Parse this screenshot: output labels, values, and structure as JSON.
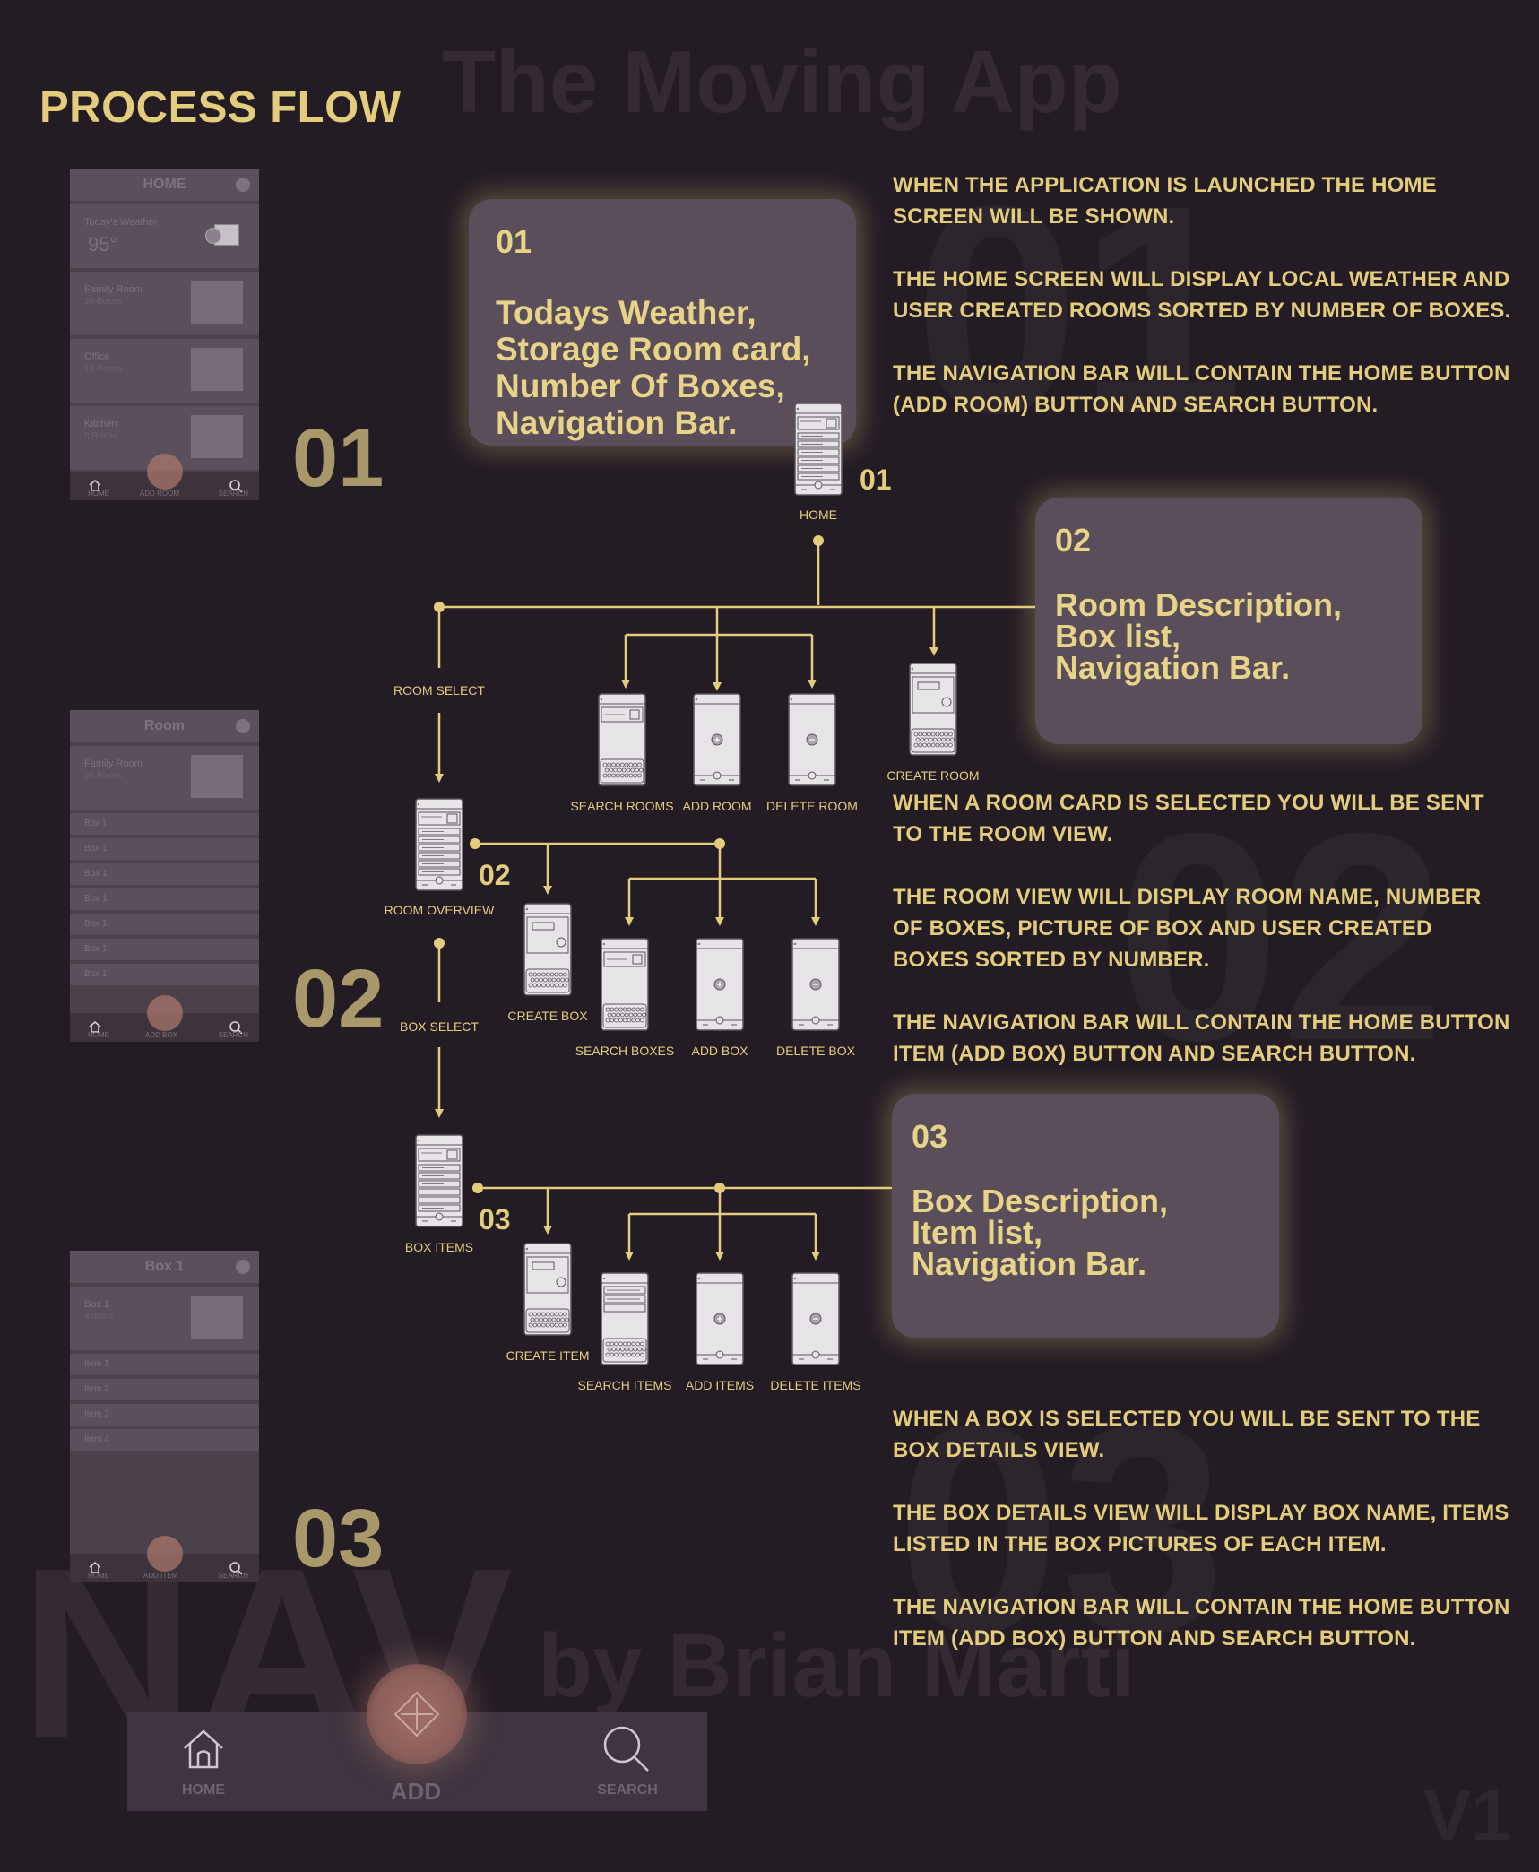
{
  "watermarks": {
    "app_title": "The Moving App",
    "byline": "by Brian Marti",
    "nav": "NAV",
    "version": "V1",
    "bg_01": "01",
    "bg_02": "02",
    "bg_03": "03"
  },
  "heading": "PROCESS FLOW",
  "sections": [
    {
      "number": "01",
      "phone": {
        "title": "HOME",
        "weather_label": "Today's Weather",
        "weather_value": "95°",
        "cards": [
          {
            "title": "Family Room",
            "sub": "20 Boxes"
          },
          {
            "title": "Office",
            "sub": "15 Boxes"
          },
          {
            "title": "Kitchen",
            "sub": "8 Boxes"
          }
        ],
        "nav": {
          "left": "HOME",
          "center": "ADD ROOM",
          "right": "SEARCH"
        }
      },
      "card": {
        "number": "01",
        "text": [
          "Todays Weather,",
          "Storage Room card,",
          "Number Of Boxes,",
          "Navigation Bar."
        ]
      },
      "paragraphs": [
        "WHEN THE APPLICATION IS LAUNCHED THE HOME SCREEN WILL BE SHOWN.",
        "THE HOME SCREEN WILL DISPLAY LOCAL WEATHER AND USER CREATED ROOMS SORTED BY NUMBER OF BOXES.",
        "THE NAVIGATION BAR WILL CONTAIN THE HOME BUTTON (ADD ROOM) BUTTON AND SEARCH BUTTON."
      ]
    },
    {
      "number": "02",
      "phone": {
        "title": "Room",
        "card": {
          "title": "Family Room",
          "sub": "20 Boxes"
        },
        "rows": [
          "Box 1",
          "Box 1",
          "Box 1",
          "Box 1",
          "Box 1",
          "Box 1",
          "Box 1"
        ],
        "nav": {
          "left": "HOME",
          "center": "ADD BOX",
          "right": "SEARCH"
        }
      },
      "card": {
        "number": "02",
        "text": [
          "Room Description,",
          "Box list,",
          "Navigation Bar."
        ]
      },
      "paragraphs": [
        "WHEN A ROOM CARD IS SELECTED YOU WILL BE SENT TO THE ROOM VIEW.",
        "THE ROOM VIEW WILL DISPLAY ROOM NAME, NUMBER OF BOXES, PICTURE OF BOX AND USER CREATED BOXES SORTED BY NUMBER.",
        "THE NAVIGATION BAR WILL CONTAIN THE HOME BUTTON ITEM (ADD BOX) BUTTON AND SEARCH BUTTON."
      ]
    },
    {
      "number": "03",
      "phone": {
        "title": "Box 1",
        "card": {
          "title": "Box 1",
          "sub": "4 Items"
        },
        "rows": [
          "Item 1",
          "Item 2",
          "Item 3",
          "Item 4"
        ],
        "nav": {
          "left": "HOME",
          "center": "ADD ITEM",
          "right": "SEARCH"
        }
      },
      "card": {
        "number": "03",
        "text": [
          "Box Description,",
          "Item list,",
          "Navigation Bar."
        ]
      },
      "paragraphs": [
        "WHEN A BOX IS SELECTED YOU WILL BE SENT TO THE BOX DETAILS VIEW.",
        "THE BOX DETAILS VIEW WILL DISPLAY BOX NAME, ITEMS LISTED IN THE BOX PICTURES OF EACH ITEM.",
        "THE NAVIGATION BAR WILL CONTAIN THE HOME BUTTON ITEM (ADD BOX) BUTTON AND SEARCH BUTTON."
      ]
    }
  ],
  "flow": {
    "home": {
      "label": "HOME",
      "number": "01"
    },
    "room_select": "ROOM SELECT",
    "room_overview": {
      "label": "ROOM OVERVIEW",
      "number": "02"
    },
    "box_select": "BOX SELECT",
    "box_items": {
      "label": "BOX ITEMS",
      "number": "03"
    },
    "level1": [
      "SEARCH ROOMS",
      "ADD ROOM",
      "DELETE ROOM",
      "CREATE ROOM"
    ],
    "level2": [
      "CREATE BOX",
      "SEARCH BOXES",
      "ADD BOX",
      "DELETE BOX"
    ],
    "level3": [
      "CREATE ITEM",
      "SEARCH ITEMS",
      "ADD ITEMS",
      "DELETE ITEMS"
    ]
  },
  "bottom_nav": {
    "home": "HOME",
    "add": "ADD",
    "search": "SEARCH"
  },
  "colors": {
    "background": "#241c25",
    "accent": "#e3cd7d",
    "card": "#594e5a"
  }
}
